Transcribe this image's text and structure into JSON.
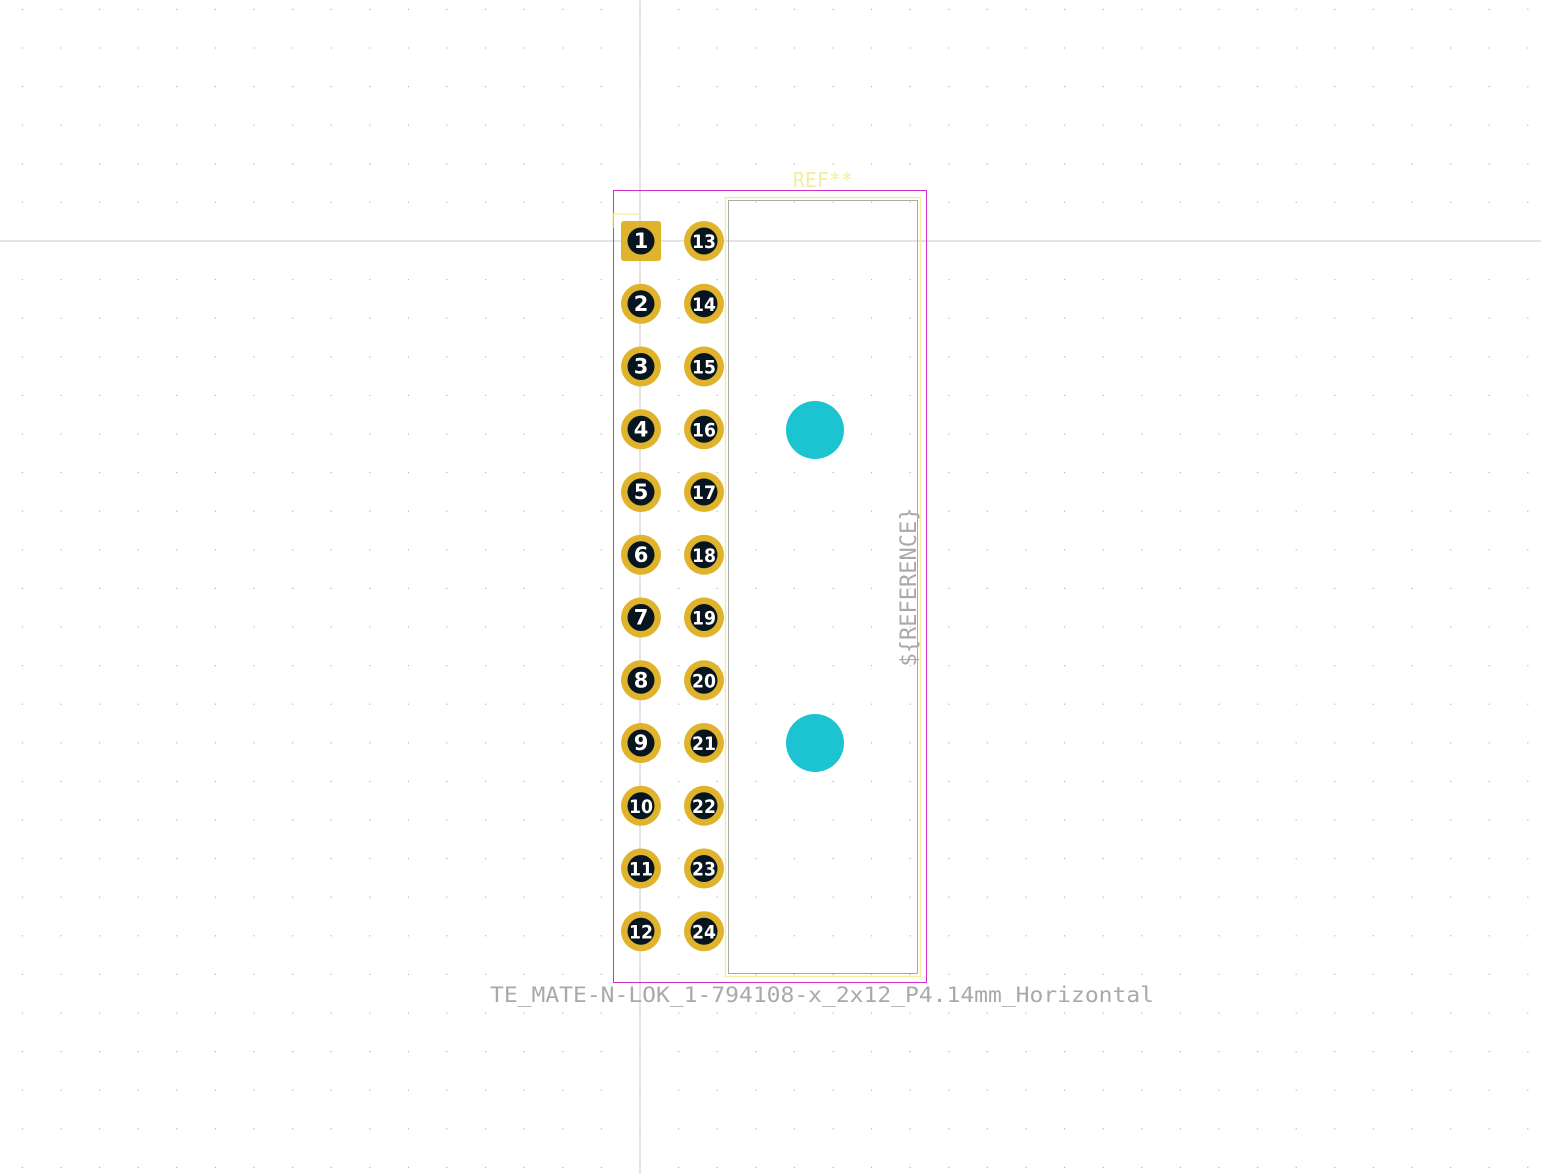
{
  "footprint": {
    "reference": "REF**",
    "value": "TE_MATE-N-LOK_1-794108-x_2x12_P4.14mm_Horizontal",
    "fab_reference": "${REFERENCE}"
  },
  "pads": {
    "left_column": [
      "1",
      "2",
      "3",
      "4",
      "5",
      "6",
      "7",
      "8",
      "9",
      "10",
      "11",
      "12"
    ],
    "right_column": [
      "13",
      "14",
      "15",
      "16",
      "17",
      "18",
      "19",
      "20",
      "21",
      "22",
      "23",
      "24"
    ]
  },
  "mounting_holes": 2,
  "colors": {
    "background": "#ffffff",
    "grid_dot": "#b8b8b8",
    "crosshair": "#c8c8c8",
    "pad": "#e0b32c",
    "drill": "#071520",
    "npth": "#1cc3d1",
    "courtyard": "#d22fd1",
    "silkscreen": "#f2eda1",
    "fab": "#a9a9a9"
  }
}
